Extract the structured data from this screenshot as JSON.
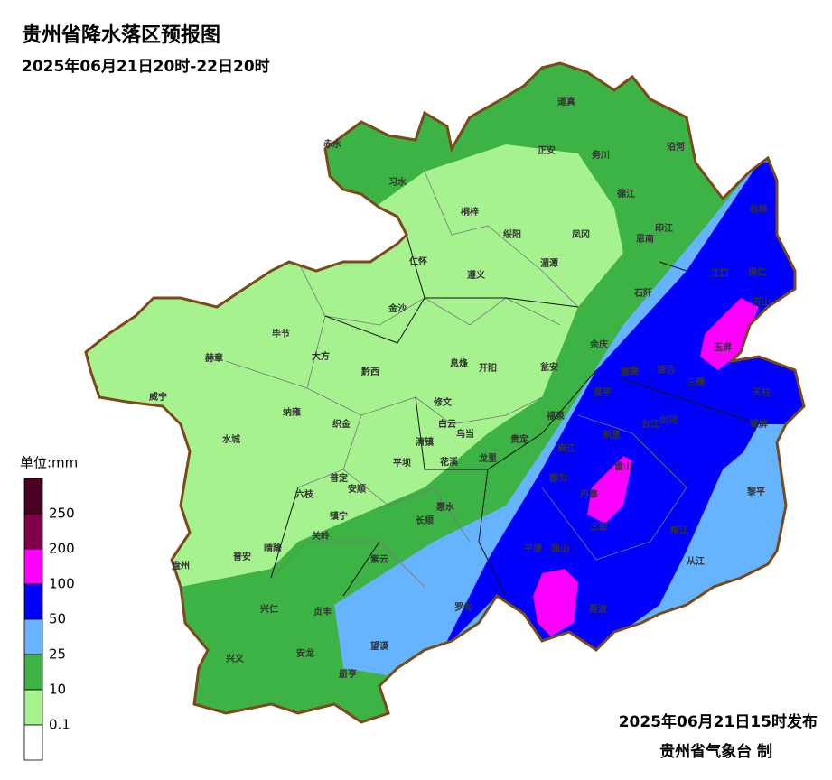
{
  "title": "贵州省降水落区预报图",
  "subtitle": "2025年06月21日20时-22日20时",
  "legend": {
    "unit": "单位:mm",
    "ticks": [
      250,
      200,
      100,
      50,
      25,
      10,
      0.1
    ],
    "colors": [
      "#4a0024",
      "#80004a",
      "#ff00ff",
      "#0000ff",
      "#66b3ff",
      "#3db345",
      "#a6f28f",
      "#ffffff"
    ]
  },
  "counties": [
    "赤水",
    "习水",
    "正安",
    "道真",
    "务川",
    "沿河",
    "桐梓",
    "绥阳",
    "凤冈",
    "德江",
    "印江",
    "思南",
    "松桃",
    "仁怀",
    "遵义",
    "湄潭",
    "石阡",
    "江口",
    "铜仁",
    "万山",
    "金沙",
    "毕节",
    "大方",
    "黔西",
    "息烽",
    "开阳",
    "余庆",
    "施秉",
    "镇远",
    "玉屏",
    "赫章",
    "威宁",
    "纳雍",
    "织金",
    "修文",
    "瓮安",
    "黄平",
    "三穗",
    "天柱",
    "剑河",
    "台江",
    "锦屏",
    "福泉",
    "白云",
    "乌当",
    "清镇",
    "花溪",
    "贵定",
    "凯里",
    "麻江",
    "水城",
    "平坝",
    "龙里",
    "雷山",
    "普定",
    "安顺",
    "六枝",
    "惠水",
    "都匀",
    "丹寨",
    "镇宁",
    "长顺",
    "关岭",
    "三都",
    "榕江",
    "黎平",
    "盘州",
    "普安",
    "晴隆",
    "紫云",
    "平塘",
    "独山",
    "从江",
    "兴仁",
    "贞丰",
    "罗甸",
    "荔波",
    "望谟",
    "兴义",
    "安龙",
    "册亨"
  ],
  "footer": {
    "issued": "2025年06月21日15时发布",
    "producer": "贵州省气象台 制"
  }
}
